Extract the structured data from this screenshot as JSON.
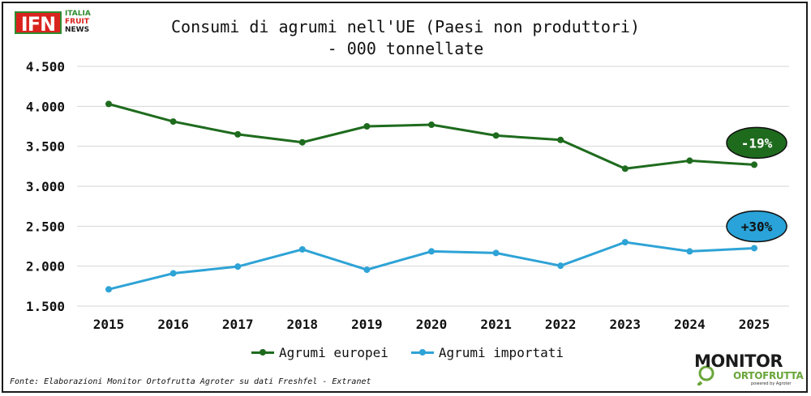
{
  "header": {
    "logo_main": "IFN",
    "logo_sub": [
      "ITALIA",
      "FRUIT",
      "NEWS"
    ]
  },
  "chart_data": {
    "type": "line",
    "title": "Consumi di agrumi nell'UE (Paesi non produttori)",
    "subtitle": "- 000 tonnellate",
    "categories": [
      "2015",
      "2016",
      "2017",
      "2018",
      "2019",
      "2020",
      "2021",
      "2022",
      "2023",
      "2024",
      "2025"
    ],
    "series": [
      {
        "name": "Agrumi europei",
        "color": "#1e6b1e",
        "values": [
          4030,
          3810,
          3650,
          3550,
          3750,
          3770,
          3635,
          3580,
          3220,
          3320,
          3270
        ]
      },
      {
        "name": "Agrumi importati",
        "color": "#2ea3d6",
        "values": [
          1710,
          1910,
          1995,
          2210,
          1955,
          2185,
          2165,
          2005,
          2300,
          2185,
          2225
        ]
      }
    ],
    "yticks": [
      1500,
      2000,
      2500,
      3000,
      3500,
      4000,
      4500
    ],
    "ytick_labels": [
      "1.500",
      "2.000",
      "2.500",
      "3.000",
      "3.500",
      "4.000",
      "4.500"
    ],
    "ylim": [
      1500,
      4500
    ],
    "grid": true,
    "legend": "bottom",
    "annotations": [
      {
        "text": "-19%",
        "series": 0,
        "fill": "#1e6b1e",
        "text_color": "#ffffff"
      },
      {
        "text": "+30%",
        "series": 1,
        "fill": "#29a3d9",
        "text_color": "#111111"
      }
    ]
  },
  "footer": {
    "source": "Fonte: Elaborazioni Monitor Ortofrutta Agroter su dati Freshfel - Extranet",
    "brand_top": "MONITOR",
    "brand_bottom": "ORTOFRUTTA",
    "brand_small": "powered by Agroter"
  }
}
